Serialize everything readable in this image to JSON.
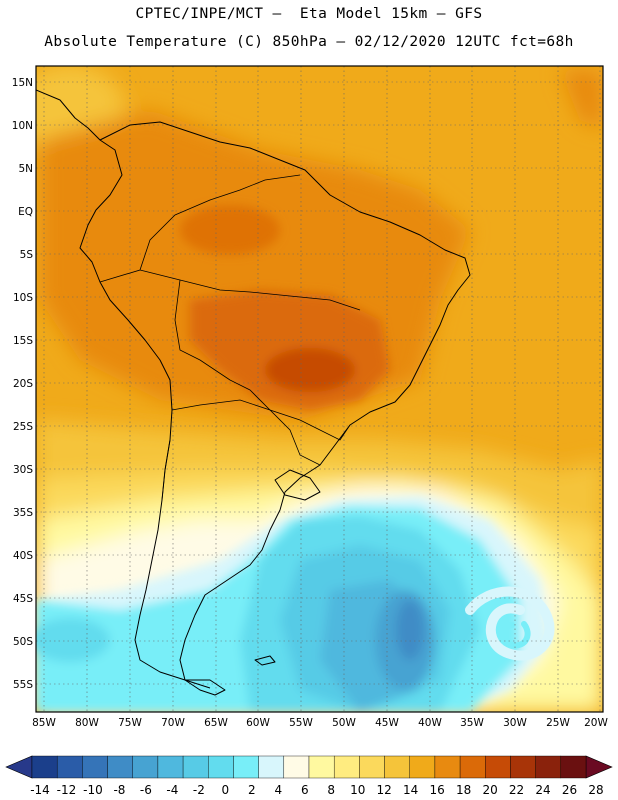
{
  "title": {
    "line1": "CPTEC/INPE/MCT –  Eta Model 15km – GFS",
    "line2": "Absolute Temperature (C) 850hPa – 02/12/2020 12UTC fct=68h"
  },
  "axes": {
    "lat_labels": [
      "15N",
      "10N",
      "5N",
      "EQ",
      "5S",
      "10S",
      "15S",
      "20S",
      "25S",
      "30S",
      "35S",
      "40S",
      "45S",
      "50S",
      "55S"
    ],
    "lon_labels": [
      "85W",
      "80W",
      "75W",
      "70W",
      "65W",
      "60W",
      "55W",
      "50W",
      "45W",
      "40W",
      "35W",
      "30W",
      "25W",
      "20W"
    ]
  },
  "colorbar": {
    "labels": [
      "-14",
      "-12",
      "-10",
      "-8",
      "-6",
      "-4",
      "-2",
      "0",
      "2",
      "4",
      "6",
      "8",
      "10",
      "12",
      "14",
      "16",
      "18",
      "20",
      "22",
      "24",
      "26",
      "28"
    ],
    "colors": [
      "#1b3f8b",
      "#2a5ca8",
      "#3574b8",
      "#3f8cc6",
      "#47a3d2",
      "#4fb8de",
      "#57cbe6",
      "#62dcee",
      "#78eef8",
      "#d8f6fc",
      "#fffbe6",
      "#fff9a0",
      "#ffec80",
      "#fbd95c",
      "#f5c43a",
      "#f0aa1a",
      "#e88a10",
      "#db6a08",
      "#c64b06",
      "#a83408",
      "#8a220c",
      "#6a1010"
    ],
    "under_color": "#27398a",
    "over_color": "#6a0a22"
  }
}
